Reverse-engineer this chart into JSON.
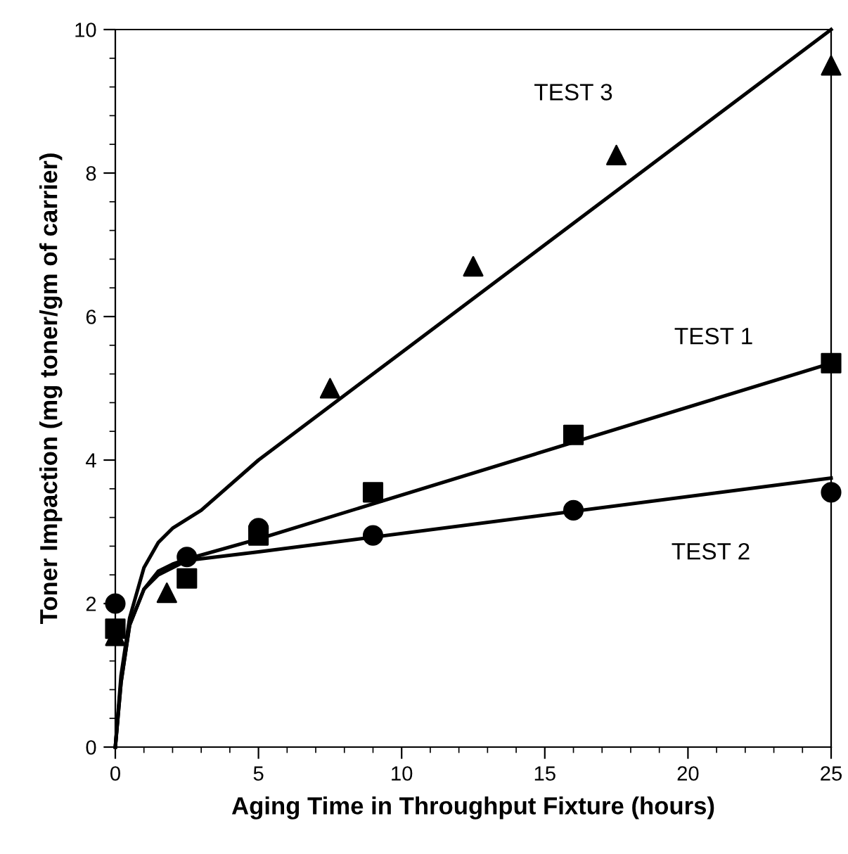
{
  "chart_data": {
    "type": "scatter",
    "xlabel": "Aging Time in Throughput Fixture (hours)",
    "ylabel": "Toner Impaction (mg toner/gm of carrier)",
    "xlim": [
      0,
      25
    ],
    "xticks": [
      0,
      5,
      10,
      15,
      20,
      25
    ],
    "ylim": [
      0,
      10
    ],
    "yticks": [
      0,
      2,
      4,
      6,
      8,
      10
    ],
    "grid": false,
    "legend": false,
    "series": [
      {
        "marker": "triangle",
        "color": "#000000",
        "x": [
          0,
          1.8,
          7.5,
          12.5,
          17.5,
          25
        ],
        "values": [
          1.55,
          2.15,
          5.0,
          6.7,
          8.25,
          9.5
        ]
      },
      {
        "marker": "square",
        "color": "#000000",
        "x": [
          0,
          2.5,
          5,
          9,
          16,
          25
        ],
        "values": [
          1.65,
          2.35,
          2.95,
          3.55,
          4.35,
          5.35
        ]
      },
      {
        "marker": "circle",
        "color": "#000000",
        "x": [
          0,
          2.5,
          5,
          9,
          16,
          25
        ],
        "values": [
          2.0,
          2.65,
          3.05,
          2.95,
          3.3,
          3.55
        ]
      },
      {
        "type": "line",
        "line_style": "solid",
        "color": "#000000",
        "x": [
          0,
          0.2,
          0.5,
          1,
          1.5,
          2,
          3,
          5,
          25
        ],
        "values": [
          0,
          1.0,
          1.8,
          2.5,
          2.85,
          3.05,
          3.3,
          4.0,
          10
        ]
      },
      {
        "type": "line",
        "line_style": "solid",
        "color": "#000000",
        "x": [
          0,
          0.2,
          0.5,
          1,
          1.5,
          2,
          2.5,
          5,
          25
        ],
        "values": [
          0,
          0.9,
          1.7,
          2.2,
          2.45,
          2.55,
          2.62,
          2.9,
          5.35
        ]
      },
      {
        "type": "line",
        "line_style": "solid",
        "color": "#000000",
        "x": [
          0,
          0.2,
          0.5,
          1,
          1.5,
          2,
          2.5,
          5,
          25
        ],
        "values": [
          0,
          0.9,
          1.7,
          2.2,
          2.4,
          2.5,
          2.6,
          2.72,
          3.75
        ]
      }
    ],
    "annotations": [
      "TEST 3",
      "TEST 1",
      "TEST 2"
    ]
  }
}
